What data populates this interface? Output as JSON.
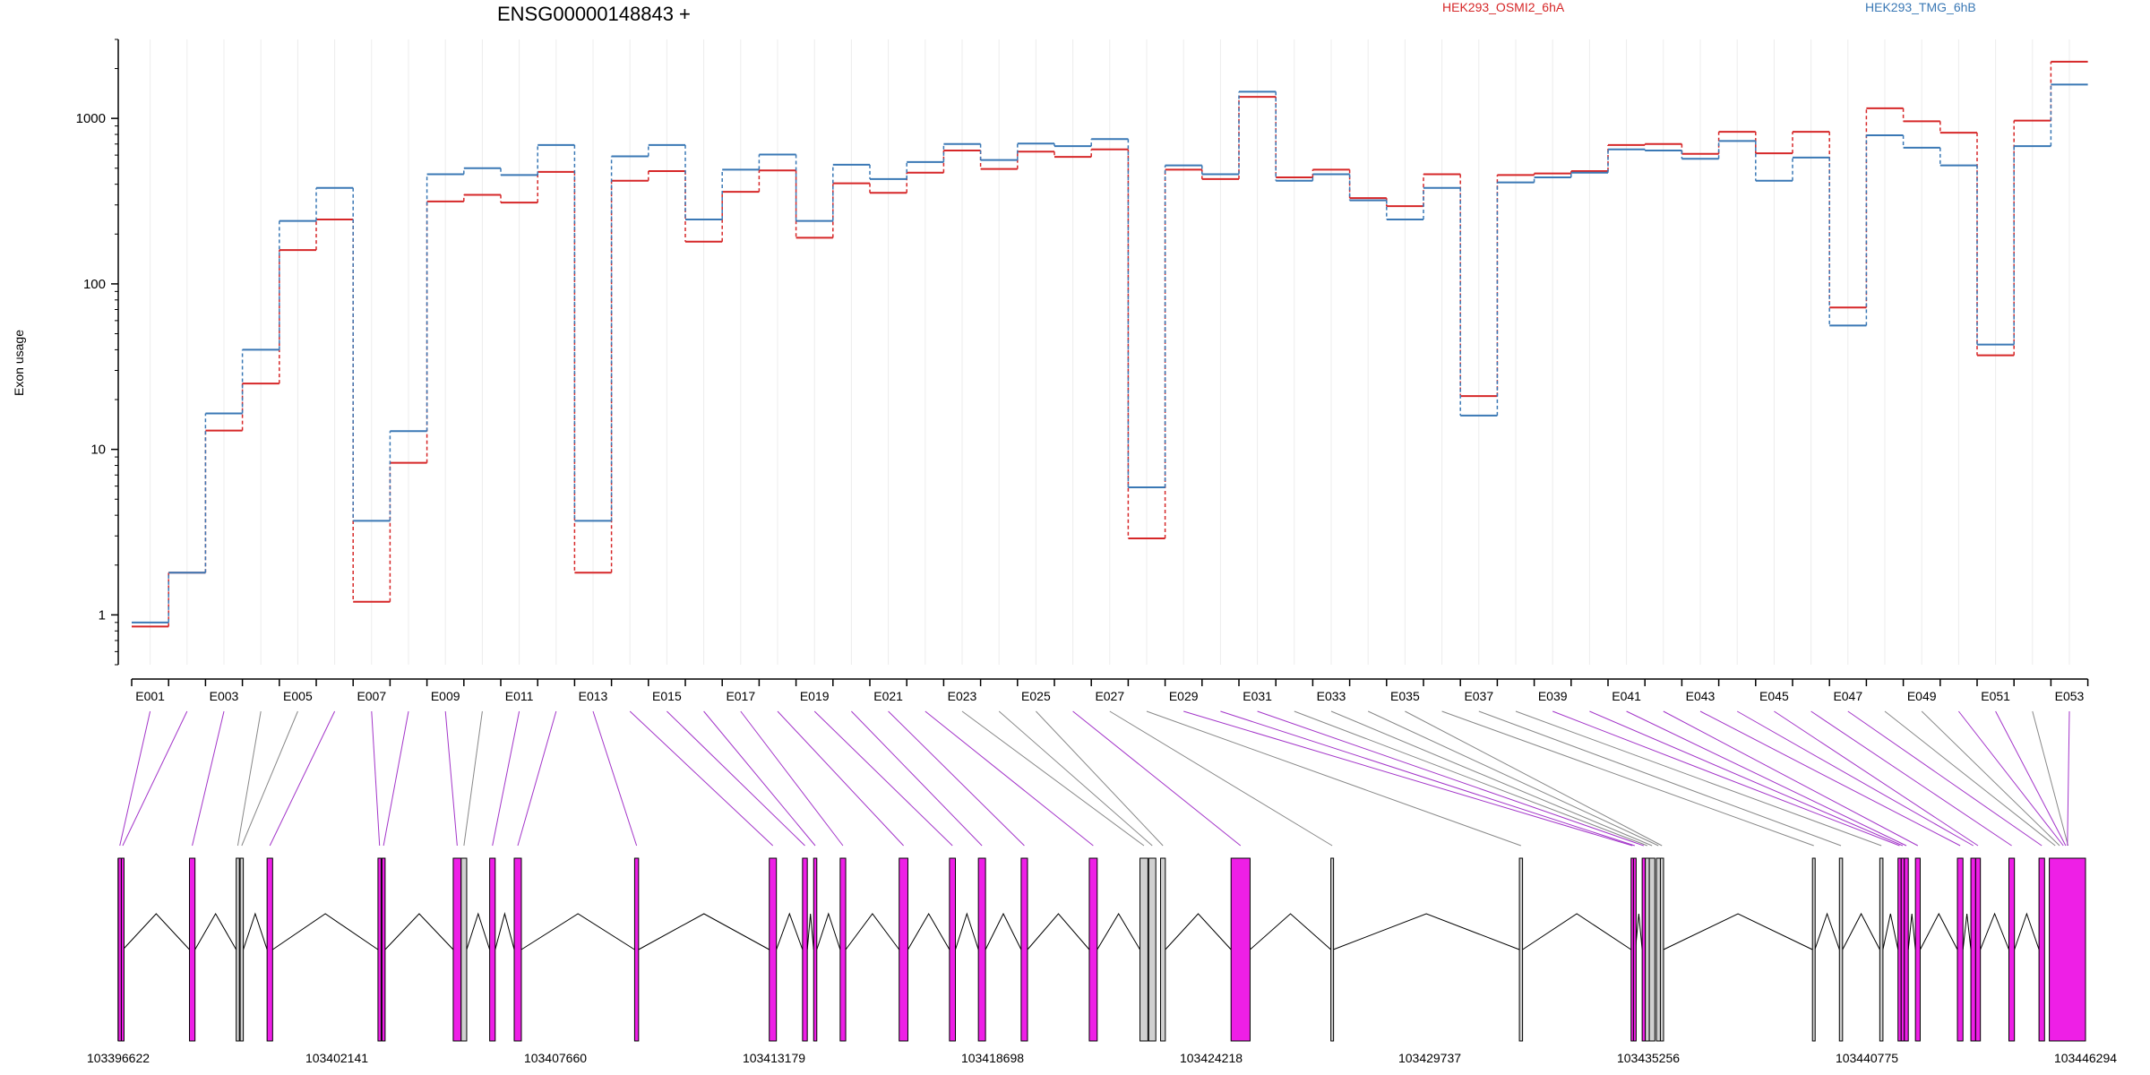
{
  "chart_data": {
    "type": "line",
    "title": "ENSG00000148843 +",
    "ylabel": "Exon usage",
    "yscale": "log",
    "ylim": [
      0.5,
      3000
    ],
    "yticks": [
      1,
      10,
      100,
      1000
    ],
    "ytick_labels": [
      "1",
      "10",
      "100",
      "1000"
    ],
    "x_tick_labels": [
      "E001",
      "E003",
      "E005",
      "E007",
      "E009",
      "E011",
      "E013",
      "E015",
      "E017",
      "E019",
      "E021",
      "E023",
      "E025",
      "E027",
      "E029",
      "E031",
      "E033",
      "E035",
      "E037",
      "E039",
      "E041",
      "E043",
      "E045",
      "E047",
      "E049",
      "E051",
      "E053"
    ],
    "legend": [
      {
        "name": "HEK293_OSMI2_6hA",
        "color": "#d62728"
      },
      {
        "name": "HEK293_TMG_6hB",
        "color": "#3a78b5"
      }
    ],
    "series": [
      {
        "name": "HEK293_OSMI2_6hA",
        "color": "#d62728",
        "values": [
          0.85,
          1.8,
          13,
          25,
          160,
          245,
          1.2,
          8.3,
          315,
          345,
          310,
          475,
          1.8,
          420,
          480,
          180,
          360,
          485,
          190,
          405,
          355,
          470,
          640,
          495,
          630,
          585,
          650,
          2.9,
          490,
          430,
          1350,
          440,
          490,
          330,
          295,
          460,
          21,
          455,
          465,
          480,
          690,
          700,
          610,
          830,
          615,
          830,
          72,
          1150,
          960,
          820,
          37,
          970,
          2200
        ]
      },
      {
        "name": "HEK293_TMG_6hB",
        "color": "#3a78b5",
        "values": [
          0.9,
          1.8,
          16.5,
          40,
          240,
          380,
          3.7,
          12.9,
          460,
          500,
          455,
          690,
          3.7,
          590,
          690,
          245,
          490,
          605,
          240,
          525,
          430,
          545,
          700,
          560,
          705,
          680,
          750,
          5.9,
          520,
          460,
          1450,
          420,
          460,
          320,
          245,
          380,
          16,
          410,
          440,
          470,
          650,
          640,
          570,
          730,
          420,
          580,
          56,
          790,
          665,
          520,
          43,
          680,
          1600
        ]
      }
    ],
    "genomic_axis": {
      "tick_labels": [
        "103396622",
        "103402141",
        "103407660",
        "103413179",
        "103418698",
        "103424218",
        "103429737",
        "103435256",
        "103440775",
        "103446294"
      ],
      "tick_values": [
        103396622,
        103402141,
        103407660,
        103413179,
        103418698,
        103424218,
        103429737,
        103435256,
        103440775,
        103446294
      ]
    },
    "exons": [
      {
        "id": "E001",
        "start": 103396622,
        "end": 103396700,
        "color": "#ee1fe6"
      },
      {
        "id": "E002",
        "start": 103396700,
        "end": 103396740,
        "color": "#ee1fe6"
      },
      {
        "id": "E003",
        "start": 103398420,
        "end": 103398560,
        "color": "#ee1fe6"
      },
      {
        "id": "E004",
        "start": 103399600,
        "end": 103399680,
        "color": "#d0d0d0"
      },
      {
        "id": "E005",
        "start": 103399700,
        "end": 103399780,
        "color": "#d0d0d0"
      },
      {
        "id": "E006",
        "start": 103400380,
        "end": 103400520,
        "color": "#ee1fe6"
      },
      {
        "id": "E007",
        "start": 103403180,
        "end": 103403260,
        "color": "#ee1fe6"
      },
      {
        "id": "E008",
        "start": 103403280,
        "end": 103403360,
        "color": "#ee1fe6"
      },
      {
        "id": "E009",
        "start": 103405080,
        "end": 103405280,
        "color": "#ee1fe6"
      },
      {
        "id": "E010",
        "start": 103405280,
        "end": 103405420,
        "color": "#d0d0d0"
      },
      {
        "id": "E011",
        "start": 103406000,
        "end": 103406140,
        "color": "#ee1fe6"
      },
      {
        "id": "E012",
        "start": 103406620,
        "end": 103406800,
        "color": "#ee1fe6"
      },
      {
        "id": "E013",
        "start": 103409660,
        "end": 103409760,
        "color": "#ee1fe6"
      },
      {
        "id": "E014",
        "start": 103413060,
        "end": 103413240,
        "color": "#ee1fe6"
      },
      {
        "id": "E015",
        "start": 103413900,
        "end": 103414020,
        "color": "#ee1fe6"
      },
      {
        "id": "E016",
        "start": 103414180,
        "end": 103414260,
        "color": "#ee1fe6"
      },
      {
        "id": "E017",
        "start": 103414850,
        "end": 103414990,
        "color": "#ee1fe6"
      },
      {
        "id": "E018",
        "start": 103416340,
        "end": 103416560,
        "color": "#ee1fe6"
      },
      {
        "id": "E019",
        "start": 103417610,
        "end": 103417760,
        "color": "#ee1fe6"
      },
      {
        "id": "E020",
        "start": 103418340,
        "end": 103418520,
        "color": "#ee1fe6"
      },
      {
        "id": "E021",
        "start": 103419420,
        "end": 103419580,
        "color": "#ee1fe6"
      },
      {
        "id": "E022",
        "start": 103421140,
        "end": 103421340,
        "color": "#ee1fe6"
      },
      {
        "id": "E023",
        "start": 103422420,
        "end": 103422620,
        "color": "#d0d0d0"
      },
      {
        "id": "E024",
        "start": 103422640,
        "end": 103422820,
        "color": "#d0d0d0"
      },
      {
        "id": "E025",
        "start": 103422940,
        "end": 103423060,
        "color": "#d0d0d0"
      },
      {
        "id": "E026",
        "start": 103424720,
        "end": 103425200,
        "color": "#ee1fe6"
      },
      {
        "id": "E027",
        "start": 103427240,
        "end": 103427300,
        "color": "#d0d0d0"
      },
      {
        "id": "E028",
        "start": 103432000,
        "end": 103432080,
        "color": "#d0d0d0"
      },
      {
        "id": "E029",
        "start": 103434820,
        "end": 103434880,
        "color": "#ee1fe6"
      },
      {
        "id": "E030",
        "start": 103434880,
        "end": 103434930,
        "color": "#ee1fe6"
      },
      {
        "id": "E031",
        "start": 103435100,
        "end": 103435180,
        "color": "#ee1fe6"
      },
      {
        "id": "E032",
        "start": 103435180,
        "end": 103435280,
        "color": "#d0d0d0"
      },
      {
        "id": "E033",
        "start": 103435280,
        "end": 103435420,
        "color": "#d0d0d0"
      },
      {
        "id": "E034",
        "start": 103435460,
        "end": 103435560,
        "color": "#d0d0d0"
      },
      {
        "id": "E035",
        "start": 103435560,
        "end": 103435640,
        "color": "#d0d0d0"
      },
      {
        "id": "E036",
        "start": 103439400,
        "end": 103439460,
        "color": "#d0d0d0"
      },
      {
        "id": "E037",
        "start": 103440080,
        "end": 103440160,
        "color": "#d0d0d0"
      },
      {
        "id": "E038",
        "start": 103441100,
        "end": 103441180,
        "color": "#d0d0d0"
      },
      {
        "id": "E039",
        "start": 103441560,
        "end": 103441640,
        "color": "#ee1fe6"
      },
      {
        "id": "E040",
        "start": 103441640,
        "end": 103441720,
        "color": "#ee1fe6"
      },
      {
        "id": "E041",
        "start": 103441720,
        "end": 103441820,
        "color": "#ee1fe6"
      },
      {
        "id": "E042",
        "start": 103442000,
        "end": 103442120,
        "color": "#ee1fe6"
      },
      {
        "id": "E043",
        "start": 103443060,
        "end": 103443200,
        "color": "#ee1fe6"
      },
      {
        "id": "E044",
        "start": 103443400,
        "end": 103443520,
        "color": "#ee1fe6"
      },
      {
        "id": "E045",
        "start": 103443520,
        "end": 103443640,
        "color": "#ee1fe6"
      },
      {
        "id": "E046",
        "start": 103444360,
        "end": 103444500,
        "color": "#ee1fe6"
      },
      {
        "id": "E047",
        "start": 103445120,
        "end": 103445260,
        "color": "#ee1fe6"
      },
      {
        "id": "E048",
        "start": 103445480,
        "end": 103445580,
        "color": "#d0d0d0"
      },
      {
        "id": "E049",
        "start": 103445580,
        "end": 103445700,
        "color": "#d0d0d0"
      },
      {
        "id": "E050",
        "start": 103445700,
        "end": 103445760,
        "color": "#ee1fe6"
      },
      {
        "id": "E051",
        "start": 103445760,
        "end": 103445820,
        "color": "#ee1fe6"
      },
      {
        "id": "E052",
        "start": 103445820,
        "end": 103445860,
        "color": "#d0d0d0"
      },
      {
        "id": "E053",
        "start": 103445380,
        "end": 103446294,
        "color": "#ee1fe6"
      }
    ]
  }
}
